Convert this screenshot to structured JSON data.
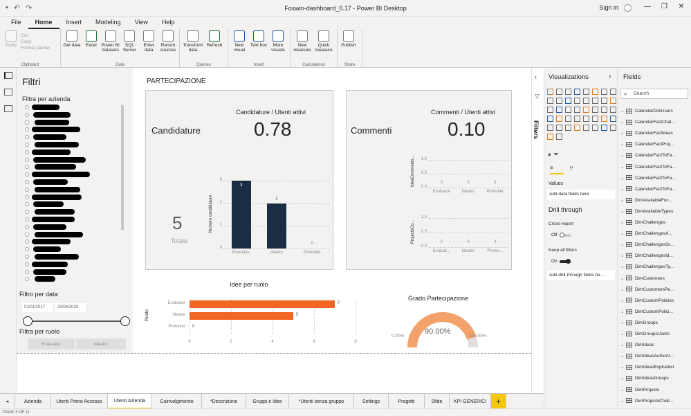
{
  "window": {
    "title": "Foxwin-dashboard_0.17 - Power BI Desktop",
    "sign_in": "Sign in"
  },
  "menu": [
    "File",
    "Home",
    "Insert",
    "Modeling",
    "View",
    "Help"
  ],
  "ribbon": {
    "clipboard": {
      "paste": "Paste",
      "cut": "Cut",
      "copy": "Copy",
      "format_painter": "Format painter",
      "group": "Clipboard"
    },
    "data": {
      "get_data": "Get data",
      "excel": "Excel",
      "pbi_datasets": "Power BI datasets",
      "sql": "SQL Server",
      "enter_data": "Enter data",
      "recent": "Recent sources",
      "group": "Data"
    },
    "queries": {
      "transform": "Transform data",
      "refresh": "Refresh",
      "group": "Queries"
    },
    "insert": {
      "new_visual": "New visual",
      "text_box": "Text box",
      "more_visuals": "More visuals",
      "group": "Insert"
    },
    "calculations": {
      "new_measure": "New measure",
      "quick_measure": "Quick measure",
      "group": "Calculations"
    },
    "share": {
      "publish": "Publish",
      "group": "Share"
    }
  },
  "filters": {
    "title": "Filtri",
    "azienda_label": "Filtra per azienda",
    "date_label": "Filtro per data",
    "date_from": "01/01/2017",
    "date_to": "20/04/2020",
    "ruolo_label": "Filtra per ruolo",
    "ruolo_options": [
      "Evaluator",
      "Ideator"
    ]
  },
  "report": {
    "section_title": "PARTECIPAZIONE",
    "candidature": {
      "label": "Candidature",
      "kpi_label": "Candidature / Utenti attivi",
      "kpi_value": "0.78",
      "total_value": "5",
      "total_label": "Totale"
    },
    "commenti": {
      "label": "Commenti",
      "kpi_label": "Commenti / Utenti attivi",
      "kpi_value": "0.10"
    },
    "grado": {
      "title": "Grado Partecipazione",
      "value": "90.00%",
      "min": "0.00%",
      "max": "100.00%",
      "fraction": 0.9
    }
  },
  "chart_data": [
    {
      "type": "bar",
      "title": "",
      "ylabel": "Numero candidature",
      "categories": [
        "Evaluator",
        "Ideator",
        "Promoter"
      ],
      "values": [
        3,
        2,
        0
      ],
      "ylim": [
        0,
        3
      ],
      "yticks": [
        "0",
        "1",
        "2",
        "3"
      ]
    },
    {
      "type": "bar",
      "title": "",
      "ylabel": "IdeaComments...",
      "categories": [
        "Evaluator",
        "Ideator",
        "Promoter"
      ],
      "values": [
        0,
        0,
        0
      ],
      "ylim": [
        0,
        1
      ],
      "yticks": [
        "0.0",
        "0.5",
        "1.0"
      ]
    },
    {
      "type": "bar",
      "title": "",
      "ylabel": "ProjectsCo...",
      "categories": [
        "Evaluat...",
        "Ideator",
        "Promo..."
      ],
      "values": [
        0,
        0,
        0
      ],
      "ylim": [
        0,
        1
      ],
      "yticks": [
        "0.0",
        "0.5",
        "1.0"
      ]
    },
    {
      "type": "bar",
      "orientation": "horizontal",
      "title": "Idee per ruolo",
      "ylabel": "Ruolo",
      "categories": [
        "Evaluator",
        "Ideator",
        "Promoter"
      ],
      "values": [
        7,
        5,
        0
      ],
      "xlim": [
        0,
        8
      ],
      "xticks": [
        "0",
        "2",
        "4",
        "6",
        "8"
      ]
    }
  ],
  "panes": {
    "filters_label": "Filters",
    "visualizations": {
      "title": "Visualizations",
      "values": "Values",
      "add_data": "Add data fields here",
      "drill": "Drill through",
      "cross_report": "Cross-report",
      "off": "Off",
      "keep_filters": "Keep all filters",
      "on": "On",
      "add_drill": "Add drill-through fields he..."
    },
    "fields": {
      "title": "Fields",
      "search_placeholder": "Search",
      "items": [
        "CalendarDimUsers",
        "CalendarFactChal...",
        "CalendarFactIdeas",
        "CalendarFactProj...",
        "CalendarFactToFa...",
        "CalendarFactToFa...",
        "CalendarFactToFa...",
        "CalendarFactToFa...",
        "DimAvailableFox...",
        "DimAvailableTypes",
        "DimChallenges",
        "DimChallengesA...",
        "DimChallengesGr...",
        "DimChallengesId...",
        "DimChallengesTy...",
        "DimCustomers",
        "DimCustomersPe...",
        "DimCustomPolicies",
        "DimCustomPolici...",
        "DimGroups",
        "DimGroupsUsers",
        "DimIdeas",
        "DimIdeasAuthorV...",
        "DimIdeasExpiration",
        "DimIdeasGroups",
        "DimProjects",
        "DimProjectsChall..."
      ]
    }
  },
  "tabs": [
    "Azienda",
    "Utenti Primo Accesso",
    "Utenti Azienda",
    "Coinvolgimento",
    "*Descrizione",
    "Gruppi e Idee",
    "*Utenti senza gruppo",
    "Settings",
    "Progetti",
    "Sfide",
    "KPI GENERICI"
  ],
  "active_tab": 2,
  "status": "PAGE 3 OF 11"
}
